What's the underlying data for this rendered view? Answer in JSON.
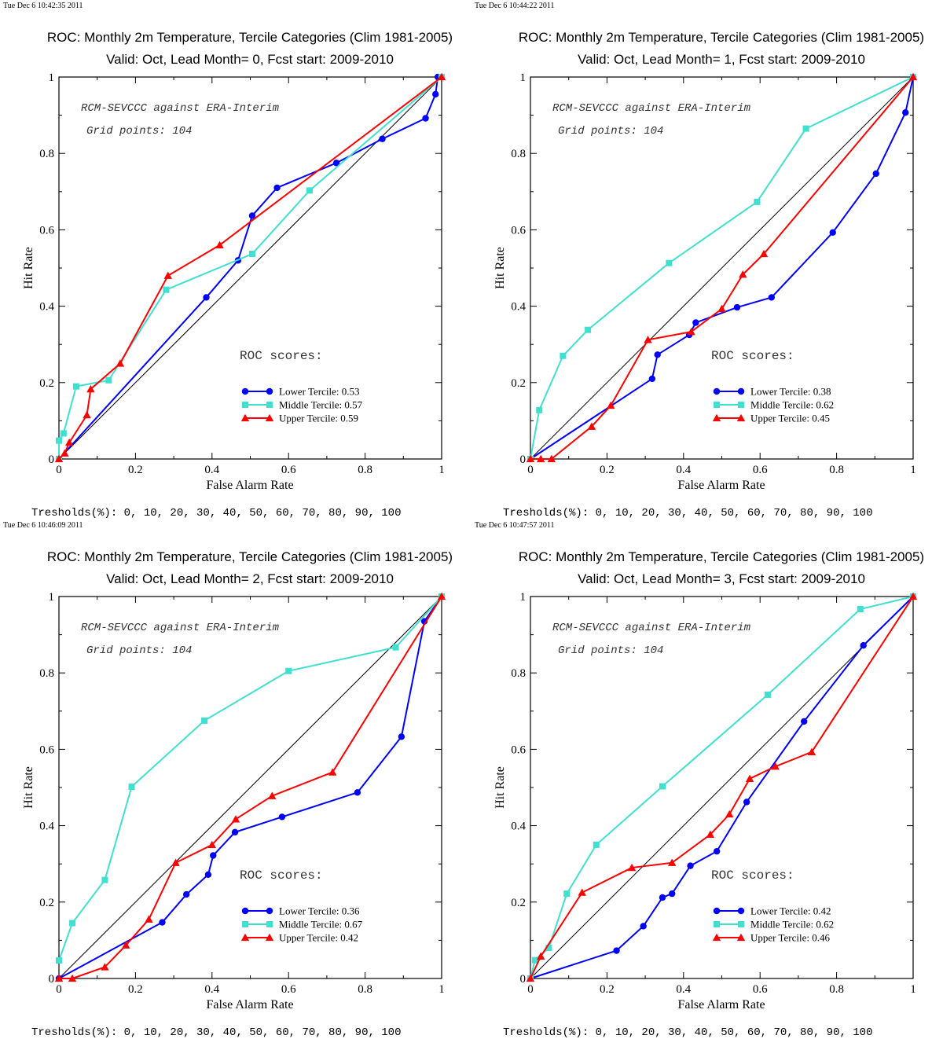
{
  "colors": {
    "lower": "#0000ff",
    "middle": "#40e0d0",
    "upper": "#ff0000",
    "diagonal": "#000000"
  },
  "chart_data": [
    {
      "type": "line",
      "timestamp": "Tue Dec  6 10:42:35 2011",
      "title": "ROC: Monthly 2m Temperature, Tercile Categories (Clim 1981-2005)",
      "subtitle": "Valid: Oct, Lead Month= 0, Fcst start: 2009-2010",
      "xlabel": "False Alarm Rate",
      "ylabel": "Hit Rate",
      "xlim": [
        0,
        1
      ],
      "ylim": [
        0,
        1
      ],
      "xticks": [
        "0",
        "0.2",
        "0.4",
        "0.6",
        "0.8",
        "1"
      ],
      "yticks": [
        "0",
        "0.2",
        "0.4",
        "0.6",
        "0.8",
        "1"
      ],
      "annotation1": "RCM-SEVCCC against ERA-Interim",
      "annotation2": "Grid points:  104",
      "roc_header": "ROC scores:",
      "thresholds": "Tresholds(%): 0, 10, 20, 30, 40, 50, 60, 70, 80, 90, 100",
      "series": [
        {
          "name": "Lower Tercile: 0.53",
          "marker": "circle",
          "colorKey": "lower",
          "x": [
            0,
            0.385,
            0.468,
            0.505,
            0.57,
            0.725,
            0.845,
            0.958,
            0.984,
            0.99,
            1
          ],
          "y": [
            0,
            0.423,
            0.52,
            0.637,
            0.71,
            0.775,
            0.838,
            0.892,
            0.955,
            1,
            1
          ]
        },
        {
          "name": "Middle Tercile: 0.57",
          "marker": "square",
          "colorKey": "middle",
          "x": [
            0,
            0,
            0.012,
            0.045,
            0.13,
            0.28,
            0.505,
            0.655,
            1
          ],
          "y": [
            0,
            0.048,
            0.067,
            0.19,
            0.206,
            0.443,
            0.537,
            0.703,
            1
          ]
        },
        {
          "name": "Upper Tercile: 0.59",
          "marker": "triangle",
          "colorKey": "upper",
          "x": [
            0,
            0.015,
            0.027,
            0.073,
            0.083,
            0.16,
            0.285,
            0.42,
            1
          ],
          "y": [
            0,
            0.015,
            0.043,
            0.115,
            0.183,
            0.25,
            0.48,
            0.56,
            1
          ]
        }
      ]
    },
    {
      "type": "line",
      "timestamp": "Tue Dec  6 10:44:22 2011",
      "title": "ROC: Monthly 2m Temperature, Tercile Categories (Clim 1981-2005)",
      "subtitle": "Valid: Oct, Lead Month= 1, Fcst start: 2009-2010",
      "xlabel": "False Alarm Rate",
      "ylabel": "Hit Rate",
      "xlim": [
        0,
        1
      ],
      "ylim": [
        0,
        1
      ],
      "xticks": [
        "0",
        "0.2",
        "0.4",
        "0.6",
        "0.8",
        "1"
      ],
      "yticks": [
        "0",
        "0.2",
        "0.4",
        "0.6",
        "0.8",
        "1"
      ],
      "annotation1": "RCM-SEVCCC against ERA-Interim",
      "annotation2": "Grid points:  104",
      "roc_header": "ROC scores:",
      "thresholds": "Tresholds(%): 0, 10, 20, 30, 40, 50, 60, 70, 80, 90, 100",
      "series": [
        {
          "name": "Lower Tercile: 0.38",
          "marker": "circle",
          "colorKey": "lower",
          "x": [
            0,
            0.318,
            0.332,
            0.415,
            0.432,
            0.54,
            0.63,
            0.79,
            0.903,
            0.98,
            1
          ],
          "y": [
            0,
            0.21,
            0.273,
            0.325,
            0.357,
            0.397,
            0.423,
            0.593,
            0.747,
            0.907,
            1
          ]
        },
        {
          "name": "Middle Tercile: 0.62",
          "marker": "square",
          "colorKey": "middle",
          "x": [
            0,
            0.023,
            0.085,
            0.15,
            0.362,
            0.592,
            0.72,
            1
          ],
          "y": [
            0,
            0.128,
            0.27,
            0.338,
            0.513,
            0.673,
            0.865,
            1
          ]
        },
        {
          "name": "Upper Tercile: 0.45",
          "marker": "triangle",
          "colorKey": "upper",
          "x": [
            0,
            0.027,
            0.055,
            0.16,
            0.21,
            0.307,
            0.42,
            0.5,
            0.555,
            0.61,
            1
          ],
          "y": [
            0,
            0,
            0,
            0.085,
            0.14,
            0.312,
            0.333,
            0.393,
            0.483,
            0.537,
            1
          ]
        }
      ]
    },
    {
      "type": "line",
      "timestamp": "Tue Dec  6 10:46:09 2011",
      "title": "ROC: Monthly 2m Temperature, Tercile Categories (Clim 1981-2005)",
      "subtitle": "Valid: Oct, Lead Month= 2, Fcst start: 2009-2010",
      "xlabel": "False Alarm Rate",
      "ylabel": "Hit Rate",
      "xlim": [
        0,
        1
      ],
      "ylim": [
        0,
        1
      ],
      "xticks": [
        "0",
        "0.2",
        "0.4",
        "0.6",
        "0.8",
        "1"
      ],
      "yticks": [
        "0",
        "0.2",
        "0.4",
        "0.6",
        "0.8",
        "1"
      ],
      "annotation1": "RCM-SEVCCC against ERA-Interim",
      "annotation2": "Grid points:  104",
      "roc_header": "ROC scores:",
      "thresholds": "Tresholds(%): 0, 10, 20, 30, 40, 50, 60, 70, 80, 90, 100",
      "series": [
        {
          "name": "Lower Tercile: 0.36",
          "marker": "circle",
          "colorKey": "lower",
          "x": [
            0,
            0.27,
            0.333,
            0.39,
            0.403,
            0.46,
            0.583,
            0.78,
            0.895,
            0.955,
            1
          ],
          "y": [
            0,
            0.147,
            0.22,
            0.272,
            0.322,
            0.383,
            0.423,
            0.487,
            0.633,
            0.935,
            1
          ]
        },
        {
          "name": "Middle Tercile: 0.67",
          "marker": "square",
          "colorKey": "middle",
          "x": [
            0,
            0.035,
            0.12,
            0.19,
            0.38,
            0.6,
            0.88,
            1
          ],
          "y": [
            0.047,
            0.145,
            0.258,
            0.502,
            0.675,
            0.805,
            0.867,
            1
          ]
        },
        {
          "name": "Upper Tercile: 0.42",
          "marker": "triangle",
          "colorKey": "upper",
          "x": [
            0,
            0.035,
            0.12,
            0.175,
            0.235,
            0.305,
            0.4,
            0.462,
            0.557,
            0.715,
            1
          ],
          "y": [
            0,
            0,
            0.03,
            0.087,
            0.155,
            0.303,
            0.35,
            0.417,
            0.478,
            0.54,
            1
          ]
        }
      ]
    },
    {
      "type": "line",
      "timestamp": "Tue Dec  6 10:47:57 2011",
      "title": "ROC: Monthly 2m Temperature, Tercile Categories (Clim 1981-2005)",
      "subtitle": "Valid: Oct, Lead Month= 3, Fcst start: 2009-2010",
      "xlabel": "False Alarm Rate",
      "ylabel": "Hit Rate",
      "xlim": [
        0,
        1
      ],
      "ylim": [
        0,
        1
      ],
      "xticks": [
        "0",
        "0.2",
        "0.4",
        "0.6",
        "0.8",
        "1"
      ],
      "yticks": [
        "0",
        "0.2",
        "0.4",
        "0.6",
        "0.8",
        "1"
      ],
      "annotation1": "RCM-SEVCCC against ERA-Interim",
      "annotation2": "Grid points:  104",
      "roc_header": "ROC scores:",
      "thresholds": "Tresholds(%): 0, 10, 20, 30, 40, 50, 60, 70, 80, 90, 100",
      "series": [
        {
          "name": "Lower Tercile: 0.42",
          "marker": "circle",
          "colorKey": "lower",
          "x": [
            0,
            0.225,
            0.295,
            0.345,
            0.37,
            0.418,
            0.487,
            0.565,
            0.715,
            0.87,
            1
          ],
          "y": [
            0,
            0.073,
            0.137,
            0.212,
            0.222,
            0.295,
            0.333,
            0.462,
            0.673,
            0.872,
            1
          ]
        },
        {
          "name": "Middle Tercile: 0.62",
          "marker": "square",
          "colorKey": "middle",
          "x": [
            0,
            0.012,
            0.048,
            0.095,
            0.172,
            0.345,
            0.62,
            0.862,
            1
          ],
          "y": [
            0,
            0.048,
            0.08,
            0.222,
            0.35,
            0.503,
            0.743,
            0.967,
            1
          ]
        },
        {
          "name": "Upper Tercile: 0.46",
          "marker": "triangle",
          "colorKey": "upper",
          "x": [
            0,
            0.027,
            0.135,
            0.265,
            0.37,
            0.47,
            0.52,
            0.573,
            0.64,
            0.735,
            1
          ],
          "y": [
            0,
            0.058,
            0.225,
            0.29,
            0.303,
            0.377,
            0.43,
            0.523,
            0.555,
            0.593,
            1
          ]
        }
      ]
    }
  ]
}
